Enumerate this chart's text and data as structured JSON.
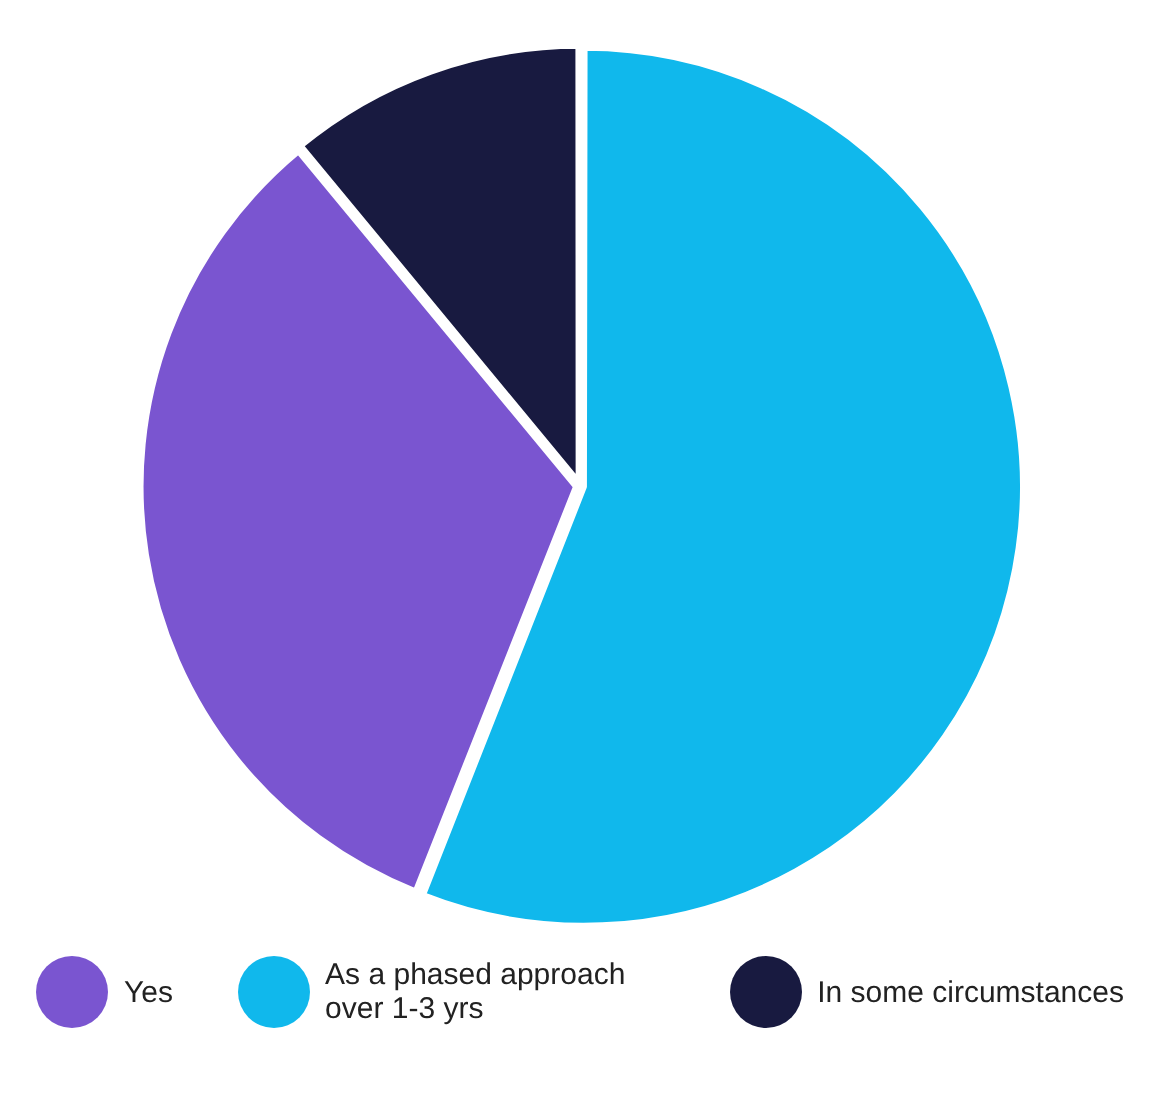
{
  "chart_data": {
    "type": "pie",
    "categories": [
      "Yes",
      "As a phased approach over 1-3 yrs",
      "In some circumstances"
    ],
    "values": [
      33,
      56,
      11
    ],
    "colors": [
      "#7a55d0",
      "#10b8ec",
      "#181a40"
    ],
    "legend": "bottom"
  }
}
